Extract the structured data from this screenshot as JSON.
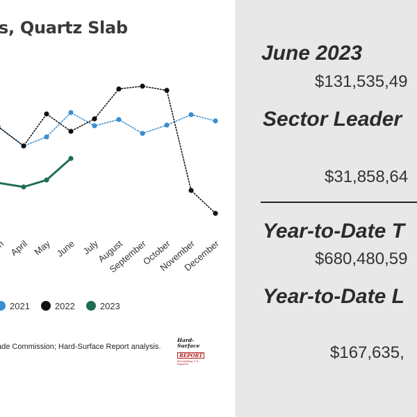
{
  "chart_data": {
    "type": "line",
    "title": "s, Quartz Slab",
    "categories": [
      "April",
      "May",
      "June",
      "July",
      "August",
      "September",
      "October",
      "November",
      "December"
    ],
    "series": [
      {
        "name": "2021",
        "color": "#3a8fd0",
        "values": [
          {
            "x": "April",
            "y": 210
          },
          {
            "x": "May",
            "y": 197
          },
          {
            "x": "June",
            "y": 162
          },
          {
            "x": "July",
            "y": 181
          },
          {
            "x": "August",
            "y": 172
          },
          {
            "x": "September",
            "y": 192
          },
          {
            "x": "October",
            "y": 180
          },
          {
            "x": "November",
            "y": 165
          },
          {
            "x": "December",
            "y": 174
          }
        ]
      },
      {
        "name": "2022",
        "color": "#111111",
        "values": [
          {
            "x": "April",
            "y": 210
          },
          {
            "x": "May",
            "y": 164
          },
          {
            "x": "June",
            "y": 189
          },
          {
            "x": "July",
            "y": 171
          },
          {
            "x": "August",
            "y": 128
          },
          {
            "x": "September",
            "y": 124
          },
          {
            "x": "October",
            "y": 130
          },
          {
            "x": "November",
            "y": 274
          },
          {
            "x": "December",
            "y": 307
          }
        ]
      },
      {
        "name": "2023",
        "color": "#1e6e55",
        "values": [
          {
            "x": "April",
            "y": 269
          },
          {
            "x": "May",
            "y": 259
          },
          {
            "x": "June",
            "y": 228
          }
        ]
      }
    ],
    "visible_ticks": [
      "n",
      "April",
      "May",
      "June",
      "July",
      "August",
      "September",
      "October",
      "November",
      "December"
    ],
    "legend_position": "bottom"
  },
  "legend": {
    "items": [
      {
        "label": "2021",
        "color": "#3a8fd0"
      },
      {
        "label": "2022",
        "color": "#111111"
      },
      {
        "label": "2023",
        "color": "#1e6e55"
      }
    ]
  },
  "source_note": "ade Commission; Hard-Surface Report analysis.",
  "logo": {
    "line1": "Hard-Surface",
    "line2": "REPORT",
    "line3": "Everything U.S. Imports"
  },
  "stats": {
    "june_label": "June 2023",
    "june_value": "$131,535,49",
    "sector_label": "Sector Leader",
    "sector_value": "$31,858,64",
    "ytd_total_label": "Year-to-Date T",
    "ytd_total_value": "$680,480,59",
    "ytd_leader_label": "Year-to-Date L",
    "ytd_leader_value": "$167,635,"
  }
}
